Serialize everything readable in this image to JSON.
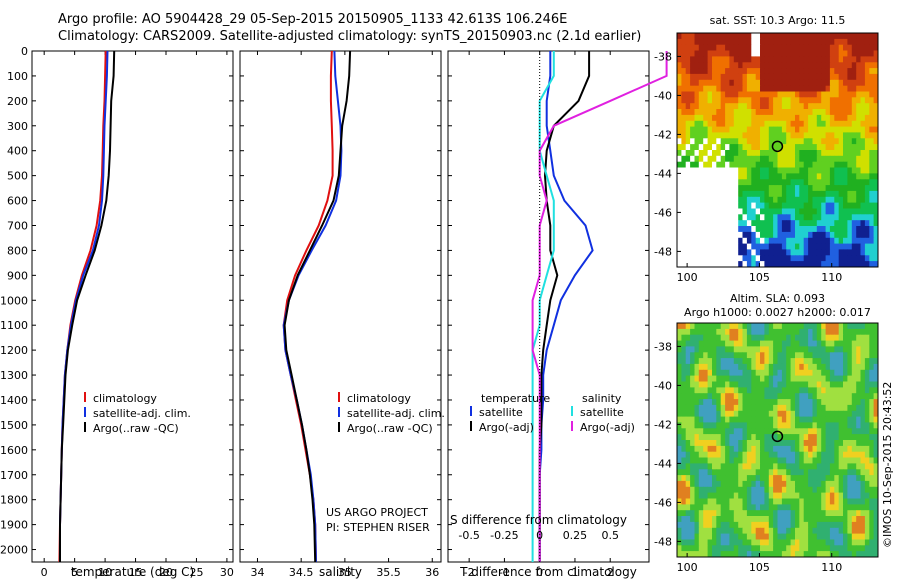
{
  "header": {
    "title_line1": "Argo profile: AO 5904428_29 05-Sep-2015 20150905_1133 42.613S 106.246E",
    "title_line2": "Climatology: CARS2009. Satellite-adjusted climatology: synTS_20150903.nc (2.1d earlier)"
  },
  "colors": {
    "climatology": "#e01010",
    "satellite": "#1030e0",
    "argo": "#000000",
    "sat_salinity": "#20e0e0",
    "argo_salinity": "#e020e0"
  },
  "chart_data": [
    {
      "type": "line",
      "panel": "temperature",
      "xlabel": "temperature (deg C)",
      "ylabel": "",
      "xlim": [
        -2,
        31
      ],
      "ylim": [
        2050,
        0
      ],
      "xticks": [
        0,
        5,
        10,
        15,
        20,
        25,
        30
      ],
      "yticks": [
        0,
        100,
        200,
        300,
        400,
        500,
        600,
        700,
        800,
        900,
        1000,
        1100,
        1200,
        1300,
        1400,
        1500,
        1600,
        1700,
        1800,
        1900,
        2000
      ],
      "legend": [
        "climatology",
        "satellite-adj. clim.",
        "Argo(..raw -QC)"
      ],
      "series": [
        {
          "name": "climatology",
          "color": "#e01010",
          "x": [
            10.1,
            10.0,
            9.9,
            9.7,
            9.6,
            9.5,
            9.2,
            8.6,
            7.6,
            6.2,
            5.1,
            4.3,
            3.8,
            3.4,
            3.2,
            3.0,
            2.9,
            2.8,
            2.7,
            2.6,
            2.5
          ],
          "y": [
            0,
            100,
            200,
            300,
            400,
            500,
            600,
            700,
            800,
            900,
            1000,
            1100,
            1200,
            1300,
            1400,
            1500,
            1600,
            1700,
            1800,
            1900,
            2050
          ]
        },
        {
          "name": "satellite-adj. clim.",
          "color": "#1030e0",
          "x": [
            10.4,
            10.3,
            10.1,
            9.9,
            9.8,
            9.7,
            9.5,
            9.0,
            8.0,
            6.4,
            5.2,
            4.4,
            3.8,
            3.4,
            3.2,
            3.0,
            2.9,
            2.8,
            2.7,
            2.6,
            2.6
          ],
          "y": [
            0,
            100,
            200,
            300,
            400,
            500,
            600,
            700,
            800,
            900,
            1000,
            1100,
            1200,
            1300,
            1400,
            1500,
            1600,
            1700,
            1800,
            1900,
            2050
          ]
        },
        {
          "name": "Argo(..raw -QC)",
          "color": "#000000",
          "x": [
            11.5,
            11.4,
            11.0,
            10.9,
            10.8,
            10.6,
            10.2,
            9.4,
            8.3,
            6.8,
            5.4,
            4.6,
            3.9,
            3.5,
            3.3,
            3.1,
            2.9,
            2.8,
            2.7,
            2.6,
            2.6
          ],
          "y": [
            0,
            100,
            200,
            300,
            400,
            500,
            600,
            700,
            800,
            900,
            1000,
            1100,
            1200,
            1300,
            1400,
            1500,
            1600,
            1700,
            1800,
            1900,
            2050
          ]
        }
      ]
    },
    {
      "type": "line",
      "panel": "salinity",
      "xlabel": "salinity",
      "xlim": [
        33.8,
        36.1
      ],
      "ylim": [
        2050,
        0
      ],
      "xticks": [
        34,
        34.5,
        35,
        35.5,
        36
      ],
      "xticklabels": [
        "34",
        "34.5",
        "35",
        "35.5",
        "36"
      ],
      "legend": [
        "climatology",
        "satellite-adj. clim.",
        "Argo(..raw -QC)"
      ],
      "annotation_line1": "US ARGO PROJECT",
      "annotation_line2": "PI: STEPHEN RISER",
      "series": [
        {
          "name": "climatology",
          "color": "#e01010",
          "x": [
            34.85,
            34.84,
            34.84,
            34.85,
            34.86,
            34.86,
            34.8,
            34.7,
            34.56,
            34.43,
            34.34,
            34.3,
            34.32,
            34.38,
            34.44,
            34.5,
            34.55,
            34.6,
            34.64,
            34.66,
            34.67
          ],
          "y": [
            0,
            100,
            200,
            300,
            400,
            500,
            600,
            700,
            800,
            900,
            1000,
            1100,
            1200,
            1300,
            1400,
            1500,
            1600,
            1700,
            1800,
            1900,
            2050
          ]
        },
        {
          "name": "satellite-adj. clim.",
          "color": "#1030e0",
          "x": [
            34.88,
            34.89,
            34.92,
            34.95,
            34.96,
            34.95,
            34.9,
            34.78,
            34.62,
            34.47,
            34.36,
            34.3,
            34.32,
            34.38,
            34.45,
            34.51,
            34.56,
            34.61,
            34.64,
            34.66,
            34.67
          ],
          "y": [
            0,
            100,
            200,
            300,
            400,
            500,
            600,
            700,
            800,
            900,
            1000,
            1100,
            1200,
            1300,
            1400,
            1500,
            1600,
            1700,
            1800,
            1900,
            2050
          ]
        },
        {
          "name": "Argo(..raw -QC)",
          "color": "#000000",
          "x": [
            35.06,
            35.05,
            35.02,
            34.97,
            34.95,
            34.93,
            34.87,
            34.74,
            34.6,
            34.46,
            34.36,
            34.31,
            34.33,
            34.39,
            34.45,
            34.51,
            34.56,
            34.6,
            34.63,
            34.65,
            34.66
          ],
          "y": [
            0,
            100,
            200,
            300,
            400,
            500,
            600,
            700,
            800,
            900,
            1000,
            1100,
            1200,
            1300,
            1400,
            1500,
            1600,
            1700,
            1800,
            1900,
            2050
          ]
        }
      ]
    },
    {
      "type": "line",
      "panel": "difference",
      "xlabel": "T difference from climatology",
      "xlabel2": "S difference from climatology",
      "xlim": [
        -2.6,
        3.1
      ],
      "ylim": [
        2050,
        0
      ],
      "xticks": [
        -2,
        -1,
        0,
        1,
        2
      ],
      "xticklabels": [
        "-2",
        "-1",
        "0",
        "1",
        "2"
      ],
      "sticks": [
        -0.5,
        -0.25,
        0,
        0.25,
        0.5
      ],
      "sticklabels": [
        "-0.5",
        "-0.25",
        "0",
        "0.25",
        "0.5"
      ],
      "legend_temperature_title": "temperature",
      "legend_salinity_title": "salinity",
      "legend_items": [
        "satellite",
        "Argo(-adj)",
        "satellite",
        "Argo(-adj)"
      ],
      "series": [
        {
          "name": "satellite",
          "group": "temperature",
          "color": "#1030e0",
          "x": [
            0.3,
            0.3,
            0.2,
            0.2,
            0.3,
            0.4,
            0.7,
            1.3,
            1.5,
            1.0,
            0.6,
            0.4,
            0.2,
            0.1,
            0.1,
            0.05,
            0.05,
            0.0,
            0.0,
            0.0,
            0.0
          ],
          "y": [
            0,
            100,
            200,
            300,
            400,
            500,
            600,
            700,
            800,
            900,
            1000,
            1100,
            1200,
            1300,
            1400,
            1500,
            1600,
            1700,
            1800,
            1900,
            2050
          ]
        },
        {
          "name": "Argo(-adj)",
          "group": "temperature",
          "color": "#000000",
          "x": [
            1.4,
            1.4,
            1.1,
            0.4,
            0.2,
            0.15,
            0.2,
            0.3,
            0.3,
            0.5,
            0.3,
            0.2,
            0.1,
            0.05,
            0.05,
            0.05,
            0.0,
            0.0,
            0.0,
            0.0,
            0.0
          ],
          "y": [
            0,
            100,
            200,
            300,
            400,
            500,
            600,
            700,
            800,
            900,
            1000,
            1100,
            1200,
            1300,
            1400,
            1500,
            1600,
            1700,
            1800,
            1900,
            2050
          ]
        },
        {
          "name": "satellite",
          "group": "salinity",
          "color": "#20e0e0",
          "x": [
            0.1,
            0.1,
            0.0,
            0.0,
            0.0,
            0.05,
            0.1,
            0.1,
            0.1,
            0.05,
            0.0,
            0.0,
            -0.05,
            -0.05,
            -0.05,
            -0.05,
            -0.05,
            -0.05,
            -0.05,
            -0.05,
            -0.05
          ],
          "y": [
            0,
            100,
            200,
            300,
            400,
            500,
            600,
            700,
            800,
            900,
            1000,
            1100,
            1200,
            1300,
            1400,
            1500,
            1600,
            1700,
            1800,
            1900,
            2050
          ]
        },
        {
          "name": "Argo(-adj)",
          "group": "salinity",
          "color": "#e020e0",
          "x": [
            0.9,
            0.9,
            0.5,
            0.1,
            0.0,
            0.0,
            0.05,
            0.0,
            0.0,
            0.0,
            -0.05,
            -0.05,
            -0.05,
            0.0,
            0.0,
            0.0,
            0.0,
            0.0,
            0.0,
            0.0,
            0.0
          ],
          "y": [
            0,
            100,
            200,
            300,
            400,
            500,
            600,
            700,
            800,
            900,
            1000,
            1100,
            1200,
            1300,
            1400,
            1500,
            1600,
            1700,
            1800,
            1900,
            2050
          ]
        }
      ]
    },
    {
      "type": "heatmap",
      "panel": "sst_map",
      "title": "sat. SST: 10.3 Argo: 11.5",
      "xlim": [
        99.3,
        113.2
      ],
      "ylim": [
        -48.8,
        -36.8
      ],
      "xticks": [
        100,
        105,
        110
      ],
      "yticks": [
        -38,
        -40,
        -42,
        -44,
        -46,
        -48
      ],
      "marker": {
        "lon": 106.246,
        "lat": -42.613
      }
    },
    {
      "type": "heatmap",
      "panel": "sla_map",
      "title_line1": "Altim. SLA: 0.093",
      "title_line2": "Argo h1000: 0.0027 h2000: 0.017",
      "xlim": [
        99.3,
        113.2
      ],
      "ylim": [
        -48.8,
        -36.8
      ],
      "xticks": [
        100,
        105,
        110
      ],
      "yticks": [
        -38,
        -40,
        -42,
        -44,
        -46,
        -48
      ],
      "marker": {
        "lon": 106.246,
        "lat": -42.613
      }
    }
  ],
  "footer": {
    "credit": "©IMOS 10-Sep-2015 20:43:52"
  }
}
